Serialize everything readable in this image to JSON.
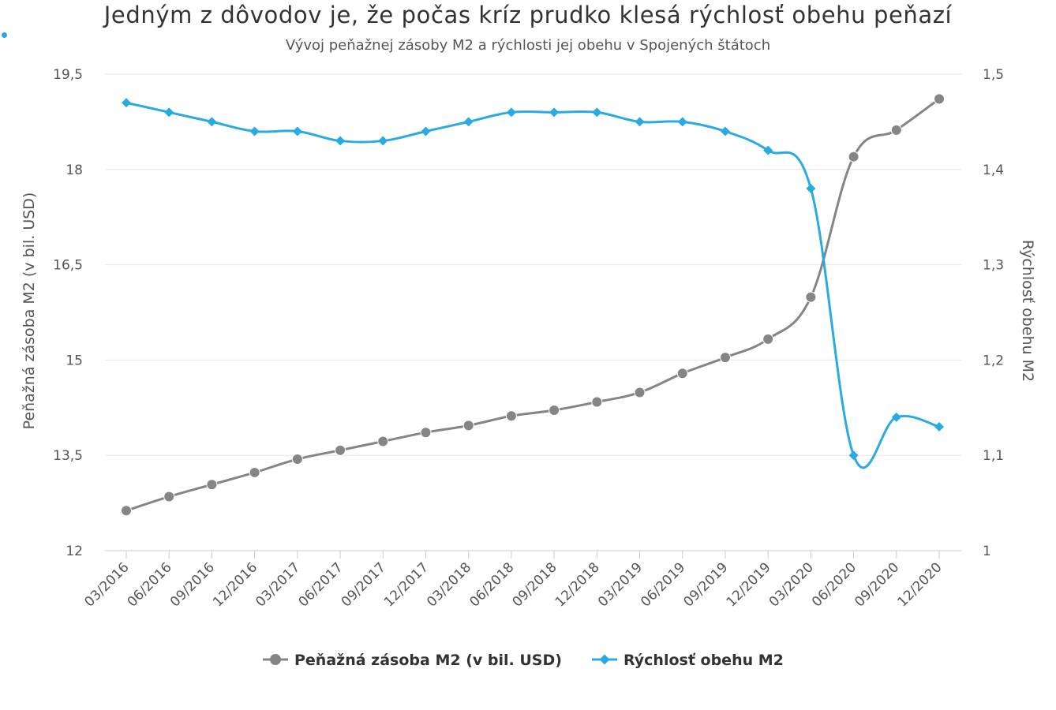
{
  "title": "Jedným z dôvodov je, že počas kríz prudko klesá rýchlosť obehu peňazí",
  "subtitle": "Vývoj peňažnej zásoby M2 a rýchlosti jej obehu v Spojených štátoch",
  "chart_data": {
    "type": "line",
    "categories": [
      "03/2016",
      "06/2016",
      "09/2016",
      "12/2016",
      "03/2017",
      "06/2017",
      "09/2017",
      "12/2017",
      "03/2018",
      "06/2018",
      "09/2018",
      "12/2018",
      "03/2019",
      "06/2019",
      "09/2019",
      "12/2019",
      "03/2020",
      "06/2020",
      "09/2020",
      "12/2020"
    ],
    "series": [
      {
        "name": "Peňažná zásoba M2 (v bil. USD)",
        "axis": "left",
        "color": "#848589",
        "marker": "circle",
        "values": [
          12.63,
          12.85,
          13.04,
          13.23,
          13.44,
          13.58,
          13.72,
          13.86,
          13.97,
          14.12,
          14.21,
          14.34,
          14.49,
          14.79,
          15.04,
          15.33,
          15.99,
          18.2,
          18.62,
          19.11
        ]
      },
      {
        "name": "Rýchlosť obehu M2",
        "axis": "right",
        "color": "#29abe2",
        "marker": "diamond",
        "values": [
          1.47,
          1.46,
          1.45,
          1.44,
          1.44,
          1.43,
          1.43,
          1.44,
          1.45,
          1.46,
          1.46,
          1.46,
          1.45,
          1.45,
          1.44,
          1.42,
          1.38,
          1.1,
          1.14,
          1.13
        ]
      }
    ],
    "yleft": {
      "label": "Peňažná zásoba M2 (v bil. USD)",
      "min": 12,
      "max": 19.5,
      "ticks": [
        "12",
        "13,5",
        "15",
        "16,5",
        "18",
        "19,5"
      ],
      "tick_values": [
        12,
        13.5,
        15,
        16.5,
        18,
        19.5
      ]
    },
    "yright": {
      "label": "Rýchlosť obehu M2",
      "min": 1,
      "max": 1.5,
      "ticks": [
        "1",
        "1,1",
        "1,2",
        "1,3",
        "1,4",
        "1,5"
      ],
      "tick_values": [
        1,
        1.1,
        1.2,
        1.3,
        1.4,
        1.5
      ]
    },
    "xlabel": "",
    "grid": true,
    "legend_position": "bottom"
  }
}
